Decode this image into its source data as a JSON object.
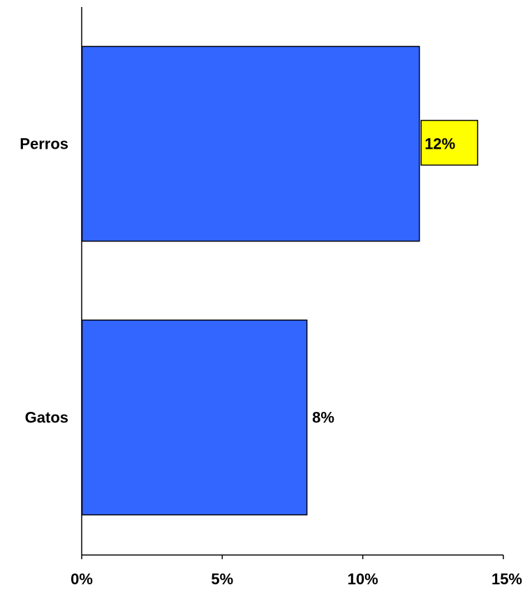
{
  "chart_data": {
    "type": "bar",
    "orientation": "horizontal",
    "categories": [
      "Perros",
      "Gatos"
    ],
    "values": [
      12,
      8
    ],
    "value_labels": [
      "12%",
      "8%"
    ],
    "xlim": [
      0,
      15
    ],
    "x_ticks": [
      0,
      5,
      10,
      15
    ],
    "x_tick_labels": [
      "0%",
      "5%",
      "10%",
      "15%"
    ],
    "title": "",
    "xlabel": "",
    "ylabel": "",
    "grid": false,
    "legend": "none",
    "bar_color": "#3366ff",
    "highlight_label": {
      "category": "Perros",
      "background": "#ffff00"
    }
  }
}
